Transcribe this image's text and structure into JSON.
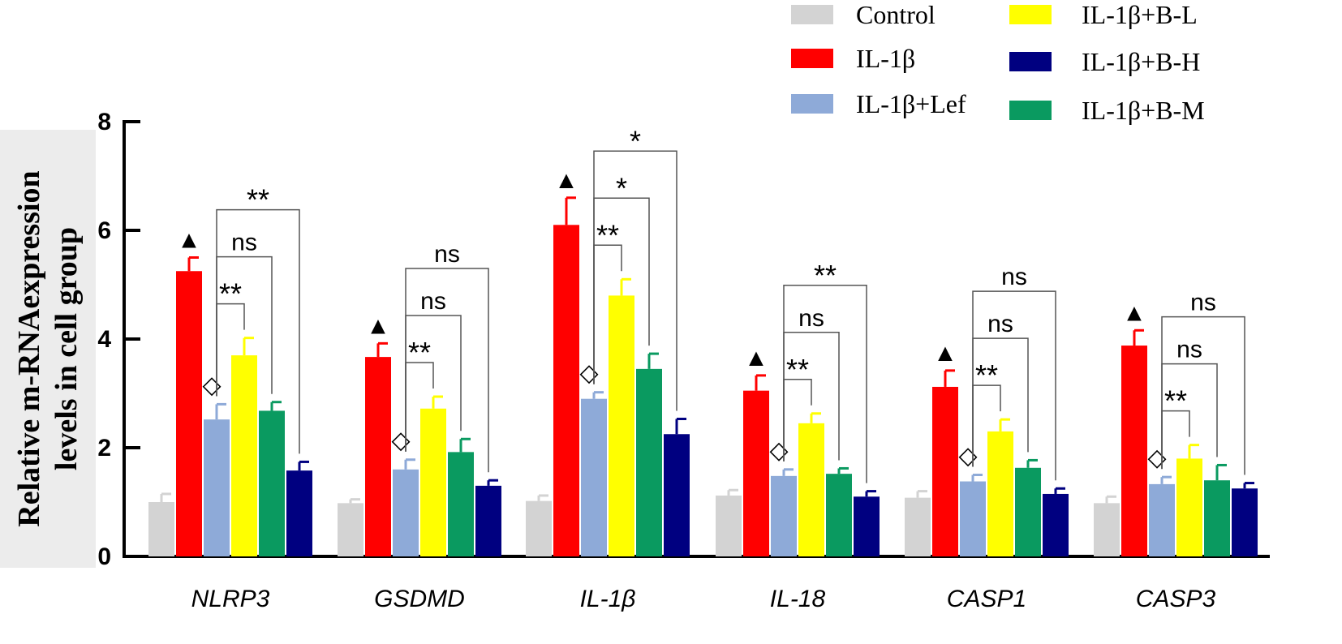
{
  "chart_data": {
    "type": "bar",
    "title": "",
    "xlabel": "",
    "ylabel_lines": [
      "Relative m-RNAexpression",
      "levels in cell group"
    ],
    "ylim": [
      0,
      8
    ],
    "yticks": [
      0,
      2,
      4,
      6,
      8
    ],
    "categories": [
      "NLRP3",
      "GSDMD",
      "IL-1β",
      "IL-18",
      "CASP1",
      "CASP3"
    ],
    "series": [
      {
        "name": "Control",
        "color": "#d3d3d3",
        "values": [
          1.0,
          0.98,
          1.02,
          1.12,
          1.08,
          0.98
        ],
        "errors": [
          0.15,
          0.07,
          0.1,
          0.1,
          0.12,
          0.12
        ]
      },
      {
        "name": "IL-1β",
        "color": "#ff0000",
        "values": [
          5.25,
          3.67,
          6.1,
          3.05,
          3.12,
          3.88
        ],
        "errors": [
          0.25,
          0.25,
          0.5,
          0.28,
          0.3,
          0.28
        ]
      },
      {
        "name": "IL-1β+Lef",
        "color": "#8eaad8",
        "values": [
          2.52,
          1.6,
          2.9,
          1.48,
          1.38,
          1.33
        ],
        "errors": [
          0.28,
          0.18,
          0.12,
          0.12,
          0.12,
          0.13
        ]
      },
      {
        "name": "IL-1β+B-L",
        "color": "#ffff00",
        "values": [
          3.7,
          2.72,
          4.8,
          2.45,
          2.3,
          1.8
        ],
        "errors": [
          0.32,
          0.22,
          0.3,
          0.18,
          0.22,
          0.25
        ]
      },
      {
        "name": "IL-1β+B-M",
        "color": "#0a9a60",
        "values": [
          2.68,
          1.92,
          3.45,
          1.52,
          1.63,
          1.4
        ],
        "errors": [
          0.16,
          0.24,
          0.28,
          0.1,
          0.14,
          0.28
        ]
      },
      {
        "name": "IL-1β+B-H",
        "color": "#000080",
        "values": [
          1.58,
          1.3,
          2.25,
          1.1,
          1.15,
          1.25
        ],
        "errors": [
          0.16,
          0.1,
          0.28,
          0.1,
          0.1,
          0.1
        ]
      }
    ],
    "legend": {
      "placement": "top-right",
      "order": [
        "Control",
        "IL-1β+B-L",
        "IL-1β",
        "IL-1β+B-H",
        "IL-1β+Lef",
        "IL-1β+B-M"
      ]
    },
    "markers": {
      "triangle_on": "IL-1β",
      "diamond_on": "IL-1β+Lef",
      "triangle_symbol": "▲",
      "diamond_symbol": "◇"
    },
    "comparisons": [
      {
        "category": "NLRP3",
        "labels": [
          "**",
          "ns",
          "**"
        ]
      },
      {
        "category": "GSDMD",
        "labels": [
          "**",
          "ns",
          "ns"
        ]
      },
      {
        "category": "IL-1β",
        "labels": [
          "**",
          "*",
          "*"
        ]
      },
      {
        "category": "IL-18",
        "labels": [
          "**",
          "ns",
          "**"
        ]
      },
      {
        "category": "CASP1",
        "labels": [
          "**",
          "ns",
          "ns"
        ]
      },
      {
        "category": "CASP3",
        "labels": [
          "**",
          "ns",
          "ns"
        ]
      }
    ]
  }
}
